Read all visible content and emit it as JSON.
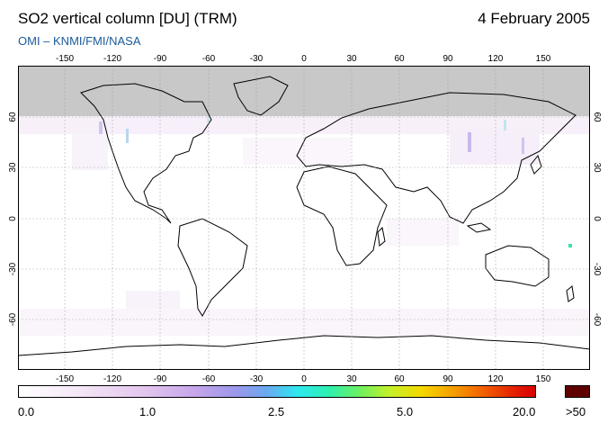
{
  "header": {
    "title": "SO2 vertical column [DU] (TRM)",
    "date": "4 February 2005",
    "credit": "OMI  –  KNMI/FMI/NASA"
  },
  "map": {
    "lon_ticks": [
      "-150",
      "-120",
      "-90",
      "-60",
      "-30",
      "0",
      "30",
      "60",
      "90",
      "120",
      "150"
    ],
    "lat_ticks": [
      "60",
      "30",
      "0",
      "-30",
      "-60"
    ],
    "colors": {
      "no_data": "#c8c8c8",
      "background": "#ffffff",
      "coast": "#000000",
      "grid": "#999999"
    }
  },
  "colorbar": {
    "labels": [
      "0.0",
      "1.0",
      "2.5",
      "5.0",
      "20.0"
    ],
    "over_label": ">50",
    "over_color": "#5e0000"
  }
}
